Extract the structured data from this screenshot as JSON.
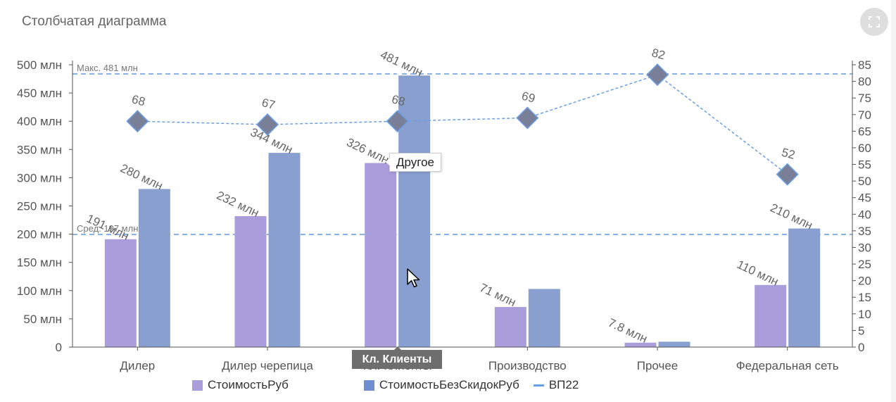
{
  "panel": {
    "title": "Столбчатая диаграмма",
    "fullscreen_icon": "expand-icon"
  },
  "chart_data": {
    "type": "bar",
    "categories": [
      "Дилер",
      "Дилер черепица",
      "Кл. Клиенты",
      "Производство",
      "Прочее",
      "Федеральная сеть"
    ],
    "series": [
      {
        "name": "СтоимостьРуб",
        "type": "bar",
        "axis": "left",
        "color": "#a99ddb",
        "values": [
          191,
          232,
          326,
          71,
          7.8,
          110
        ],
        "labels": [
          "191 млн",
          "232 млн",
          "326 млн",
          "71 млн",
          "7.8 млн",
          "110 млн"
        ]
      },
      {
        "name": "СтоимостьБезСкидокРуб",
        "type": "bar",
        "axis": "left",
        "color": "#889fd0",
        "values": [
          280,
          344,
          481,
          103,
          9.5,
          210
        ],
        "labels": [
          "280 млн",
          "344 млн",
          "481 млн",
          "",
          "",
          "210 млн"
        ]
      },
      {
        "name": "ВП22",
        "type": "line",
        "axis": "right",
        "color": "#6a9fe6",
        "marker": "diamond",
        "marker_color": "#7a7f98",
        "values": [
          68,
          67,
          68,
          69,
          82,
          52
        ],
        "labels": [
          "68",
          "67",
          "68",
          "69",
          "82",
          "52"
        ]
      }
    ],
    "y_left": {
      "ticks": [
        0,
        50,
        100,
        150,
        200,
        250,
        300,
        350,
        400,
        450,
        500
      ],
      "tick_labels": [
        "0",
        "50 млн",
        "100 млн",
        "150 млн",
        "200 млн",
        "250 млн",
        "300 млн",
        "350 млн",
        "400 млн",
        "450 млн",
        "500 млн"
      ],
      "range": [
        0,
        500
      ]
    },
    "y_right": {
      "ticks": [
        0,
        5,
        10,
        15,
        20,
        25,
        30,
        35,
        40,
        45,
        50,
        55,
        60,
        65,
        70,
        75,
        80,
        85
      ],
      "tick_labels": [
        "0",
        "5",
        "10",
        "15",
        "20",
        "25",
        "30",
        "35",
        "40",
        "45",
        "50",
        "55",
        "60",
        "65",
        "70",
        "75",
        "80",
        "85"
      ],
      "range": [
        0,
        85
      ]
    },
    "reference_lines": [
      {
        "label": "Макс. 481 млн",
        "value": 481,
        "axis": "left",
        "color": "#5b9be8"
      },
      {
        "label": "Сред. 197 млн",
        "value": 197,
        "axis": "left",
        "color": "#5b9be8"
      }
    ],
    "legend_position": "bottom"
  },
  "tooltip": {
    "text": "Другое"
  },
  "hover_category": {
    "text": "Кл. Клиенты"
  },
  "legend": {
    "items": [
      {
        "label": "СтоимостьРуб",
        "color": "#a99ddb",
        "kind": "square"
      },
      {
        "label": "СтоимостьБезСкидокРуб",
        "color": "#889fd0",
        "kind": "square"
      },
      {
        "label": "ВП22",
        "color": "#6a9fe6",
        "kind": "line"
      }
    ]
  }
}
